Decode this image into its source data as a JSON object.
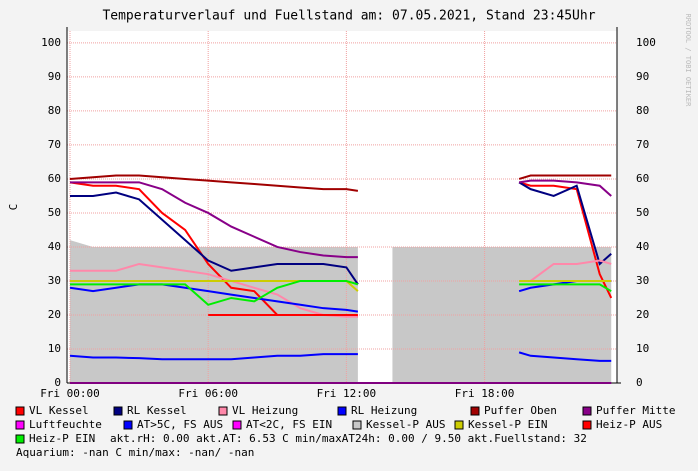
{
  "chart_data": {
    "type": "line",
    "title": "Temperaturverlauf und Fuellstand am: 07.05.2021, Stand 23:45Uhr",
    "y_label": "C",
    "side_label": "RRDTOOL / TOBI OETIKER",
    "grid": true,
    "xlim": [
      -0.13,
      23.75
    ],
    "ylim": [
      0,
      103.5
    ],
    "xticks": [
      {
        "value": 0,
        "label": "Fri 00:00"
      },
      {
        "value": 6,
        "label": "Fri 06:00"
      },
      {
        "value": 12,
        "label": "Fri 12:00"
      },
      {
        "value": 18,
        "label": "Fri 18:00"
      }
    ],
    "yticks": [
      0,
      10,
      20,
      30,
      40,
      50,
      60,
      70,
      80,
      90,
      100
    ],
    "x": [
      0,
      1,
      2,
      3,
      4,
      5,
      6,
      7,
      8,
      9,
      10,
      11,
      12,
      12.5,
      13,
      14,
      15,
      16,
      17,
      18,
      19,
      19.5,
      20,
      21,
      22,
      23,
      23.5
    ],
    "series": [
      {
        "name": "VL Kessel",
        "color": "#ff0000",
        "values": [
          59,
          58,
          58,
          57,
          50,
          45,
          35,
          28,
          27,
          20,
          20,
          20,
          20,
          19.5,
          null,
          null,
          null,
          null,
          null,
          null,
          null,
          59,
          58,
          58,
          57,
          32,
          25
        ]
      },
      {
        "name": "RL Kessel",
        "color": "#000080",
        "values": [
          55,
          55,
          56,
          54,
          48,
          42,
          36,
          33,
          34,
          35,
          35,
          35,
          34,
          29,
          null,
          null,
          null,
          null,
          null,
          null,
          null,
          59,
          57,
          55,
          58,
          35,
          38
        ]
      },
      {
        "name": "VL Heizung",
        "color": "#ff88aa",
        "values": [
          33,
          33,
          33,
          35,
          34,
          33,
          32,
          30,
          28,
          26,
          22,
          20,
          19.5,
          19.5,
          null,
          null,
          null,
          null,
          null,
          null,
          null,
          30,
          30,
          35,
          35,
          36,
          35
        ]
      },
      {
        "name": "RL Heizung",
        "color": "#0000ff",
        "values": [
          28,
          27,
          28,
          29,
          29,
          28,
          27,
          26,
          25,
          24,
          23,
          22,
          21.5,
          21,
          null,
          null,
          null,
          null,
          null,
          null,
          null,
          27,
          28,
          29,
          30,
          30,
          30
        ]
      },
      {
        "name": "Puffer Oben",
        "color": "#a00000",
        "values": [
          60,
          60.5,
          61,
          61,
          60.5,
          60,
          59.5,
          59,
          58.5,
          58,
          57.5,
          57,
          57,
          56.5,
          null,
          null,
          null,
          null,
          null,
          null,
          null,
          60,
          61,
          61,
          61,
          61,
          61
        ]
      },
      {
        "name": "Puffer Mitte",
        "color": "#880088",
        "values": [
          59,
          59,
          59,
          59,
          57,
          53,
          50,
          46,
          43,
          40,
          38.5,
          37.5,
          37,
          37,
          null,
          null,
          null,
          null,
          null,
          null,
          null,
          59,
          59.5,
          59.5,
          59,
          58,
          55
        ]
      },
      {
        "name": "Luftfeuchte",
        "color": "#ff00ff",
        "values": [
          0,
          0,
          0,
          0,
          0,
          0,
          0,
          0,
          0,
          0,
          0,
          0,
          0,
          0,
          0,
          0,
          0,
          0,
          0,
          0,
          0,
          0,
          0,
          0,
          0,
          0,
          0
        ]
      },
      {
        "name": "AT>5C, FS AUS",
        "color": "#0000ff",
        "values": [
          8,
          7.5,
          7.5,
          7.3,
          7,
          7,
          7,
          7,
          7.5,
          8,
          8,
          8.5,
          8.5,
          8.5,
          null,
          null,
          null,
          null,
          null,
          null,
          null,
          9,
          8,
          7.5,
          7,
          6.5,
          6.5
        ]
      },
      {
        "name": "AT<2C, FS EIN",
        "color": "#ff00ff",
        "values": [
          null,
          null,
          null,
          null,
          null,
          null,
          null,
          null,
          null,
          null,
          null,
          null,
          null,
          null,
          null,
          null,
          null,
          null,
          null,
          null,
          null,
          null,
          null,
          null,
          null,
          null,
          null
        ]
      },
      {
        "name": "Kessel-P AUS",
        "color": "#c8c8c8",
        "style": "area",
        "values": [
          42,
          40,
          40,
          40,
          40,
          40,
          40,
          40,
          40,
          40,
          40,
          40,
          40,
          40,
          null,
          40,
          40,
          40,
          40,
          40,
          40,
          40,
          40,
          40,
          40,
          40,
          40
        ]
      },
      {
        "name": "Kessel-P EIN",
        "color": "#cccc00",
        "values": [
          30,
          30,
          30,
          30,
          30,
          30,
          30,
          30,
          30,
          30,
          30,
          30,
          30,
          27,
          null,
          null,
          null,
          null,
          null,
          null,
          null,
          30,
          30,
          30,
          30,
          30,
          30
        ]
      },
      {
        "name": "Heiz-P AUS",
        "color": "#ff0000",
        "values": [
          null,
          null,
          null,
          null,
          null,
          null,
          20,
          20,
          20,
          20,
          20,
          20,
          20,
          20,
          null,
          null,
          null,
          null,
          null,
          null,
          null,
          null,
          null,
          null,
          null,
          null,
          22
        ]
      },
      {
        "name": "Heiz-P EIN",
        "color": "#00ee00",
        "values": [
          29,
          29,
          29,
          29,
          29,
          29,
          23,
          25,
          24,
          28,
          30,
          30,
          30,
          29,
          null,
          null,
          null,
          null,
          null,
          null,
          null,
          29,
          29,
          29,
          29,
          29,
          27
        ]
      }
    ],
    "status_line": "akt.rH: 0.00   akt.AT: 6.53 C   min/maxAT24h: 0.00 / 9.50   akt.Fuellstand:   32",
    "aquarium_line": "Aquarium: -nan C   min/max: -nan/ -nan"
  }
}
